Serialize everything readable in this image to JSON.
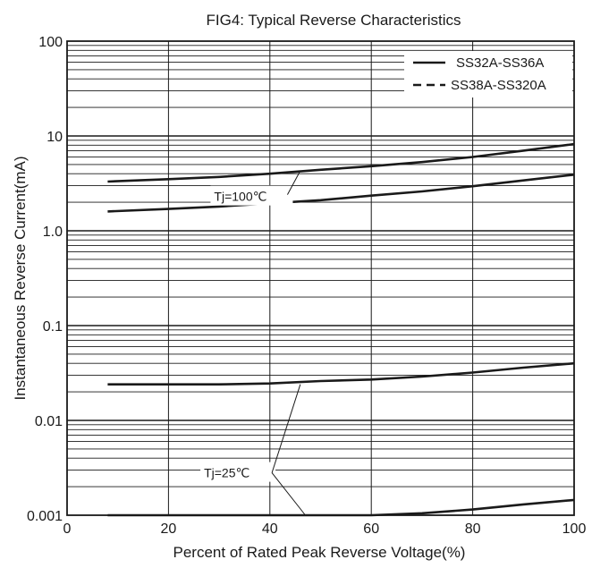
{
  "chart_data": {
    "type": "line",
    "title": "FIG4:  Typical Reverse Characteristics",
    "xlabel": "Percent of Rated Peak Reverse Voltage(%)",
    "ylabel": "Instantaneous Reverse Current(mA)",
    "x_scale": "linear",
    "y_scale": "log",
    "xlim": [
      0,
      100
    ],
    "ylim": [
      0.001,
      100
    ],
    "x_ticks": [
      0,
      20,
      40,
      60,
      80,
      100
    ],
    "x_tick_labels": [
      "0",
      "20",
      "40",
      "60",
      "80",
      "100"
    ],
    "y_ticks": [
      0.001,
      0.01,
      0.1,
      1,
      10,
      100
    ],
    "y_tick_labels": [
      "0.001",
      "0.01",
      "0.1",
      "1.0",
      "10",
      "100"
    ],
    "grid": true,
    "legend_position": "top-right",
    "legend": [
      {
        "label": "SS32A-SS36A",
        "style": "solid"
      },
      {
        "label": "SS38A-SS320A",
        "style": "dashed"
      }
    ],
    "series": [
      {
        "condition": "Tj=100℃",
        "x": [
          8,
          20,
          30,
          40,
          50,
          60,
          70,
          80,
          90,
          100
        ],
        "y": [
          3.3,
          3.5,
          3.7,
          4.0,
          4.4,
          4.8,
          5.3,
          6.0,
          7.0,
          8.2
        ]
      },
      {
        "condition": "Tj=100℃",
        "x": [
          8,
          20,
          30,
          40,
          50,
          60,
          70,
          80,
          90,
          100
        ],
        "y": [
          1.6,
          1.7,
          1.8,
          1.95,
          2.1,
          2.35,
          2.6,
          2.95,
          3.4,
          3.9
        ]
      },
      {
        "condition": "Tj=25℃",
        "x": [
          8,
          20,
          30,
          40,
          50,
          60,
          70,
          80,
          90,
          100
        ],
        "y": [
          0.024,
          0.024,
          0.024,
          0.0245,
          0.026,
          0.027,
          0.029,
          0.032,
          0.036,
          0.04
        ]
      },
      {
        "condition": "Tj=25℃",
        "x": [
          8,
          20,
          30,
          40,
          50,
          60,
          70,
          80,
          90,
          100
        ],
        "y": [
          0.001,
          0.001,
          0.001,
          0.001,
          0.001,
          0.001,
          0.00105,
          0.00115,
          0.0013,
          0.00145
        ]
      }
    ],
    "annotations": [
      {
        "text": "Tj=100℃",
        "points_to_x": 46,
        "points_to_y": 4.3
      },
      {
        "text": "Tj=25℃",
        "points_to_x": [
          46,
          47
        ],
        "points_to_y": [
          0.024,
          0.001
        ]
      }
    ]
  }
}
